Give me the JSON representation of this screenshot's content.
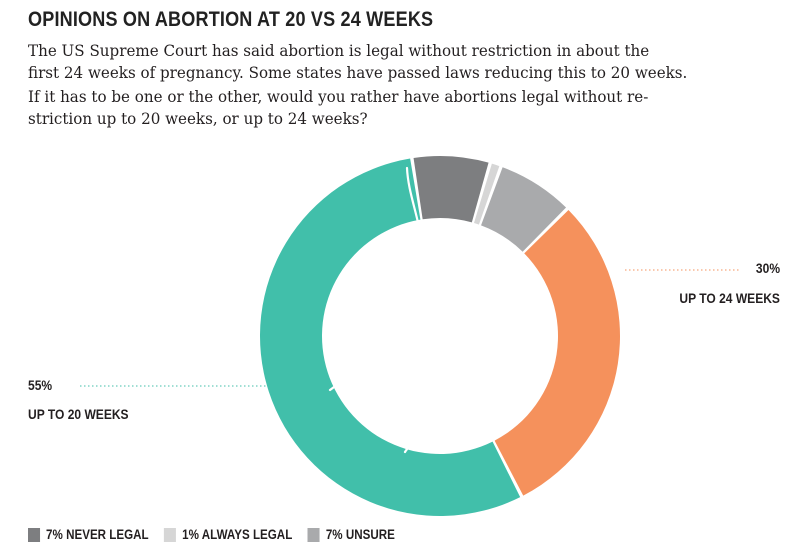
{
  "chart_data": {
    "type": "pie",
    "variant": "donut",
    "title": "Opinions on abortion at 20 vs 24 weeks",
    "subtitle_lines": [
      "The US Supreme Court has said abortion is legal without restriction in about the",
      "first 24 weeks of pregnancy. Some states have passed laws reducing this to 20 weeks."
    ],
    "question_lines": [
      "If it has to be one or the other, would you rather have abortions legal without re-",
      "striction up to 20 weeks, or up to 24 weeks?"
    ],
    "slices": [
      {
        "name": "7% NEVER LEGAL",
        "value": 7,
        "color": "#7d7e80"
      },
      {
        "name": "1% ALWAYS LEGAL",
        "value": 1,
        "color": "#d6d6d6"
      },
      {
        "name": "7% UNSURE",
        "value": 7,
        "color": "#a9aaac"
      },
      {
        "name": "UP TO 24 WEEKS",
        "value": 30,
        "label": "30%",
        "color": "#f5915c"
      },
      {
        "name": "UP TO 20 WEEKS",
        "value": 55,
        "label": "55%",
        "color": "#41bfaa"
      }
    ],
    "legend_placement": "bottom-left"
  }
}
